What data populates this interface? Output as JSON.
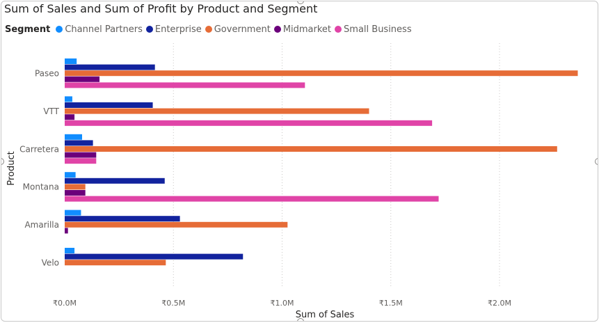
{
  "chart_data": {
    "type": "bar",
    "orientation": "horizontal",
    "title": "Sum of Sales and Sum of Profit by Product and Segment",
    "xlabel": "Sum of Sales",
    "ylabel": "Product",
    "legend_title": "Segment",
    "legend_position": "top-left",
    "grid": true,
    "xlim": [
      0,
      2400000
    ],
    "x_ticks": [
      {
        "value": 0,
        "label": "₹0.0M"
      },
      {
        "value": 500000,
        "label": "₹0.5M"
      },
      {
        "value": 1000000,
        "label": "₹1.0M"
      },
      {
        "value": 1500000,
        "label": "₹1.5M"
      },
      {
        "value": 2000000,
        "label": "₹2.0M"
      }
    ],
    "categories": [
      "Paseo",
      "VTT",
      "Carretera",
      "Montana",
      "Amarilla",
      "Velo"
    ],
    "series": [
      {
        "name": "Channel Partners",
        "color": "#118DFF",
        "values": [
          55000,
          35000,
          80000,
          50000,
          75000,
          45000
        ]
      },
      {
        "name": "Enterprise",
        "color": "#12239E",
        "values": [
          415000,
          405000,
          130000,
          460000,
          530000,
          820000
        ]
      },
      {
        "name": "Government",
        "color": "#E66C37",
        "values": [
          2360000,
          1400000,
          2265000,
          95000,
          1025000,
          465000
        ]
      },
      {
        "name": "Midmarket",
        "color": "#6B007B",
        "values": [
          160000,
          45000,
          145000,
          95000,
          15000,
          0
        ]
      },
      {
        "name": "Small Business",
        "color": "#E044A7",
        "values": [
          1105000,
          1690000,
          145000,
          1720000,
          0,
          0
        ]
      }
    ]
  }
}
